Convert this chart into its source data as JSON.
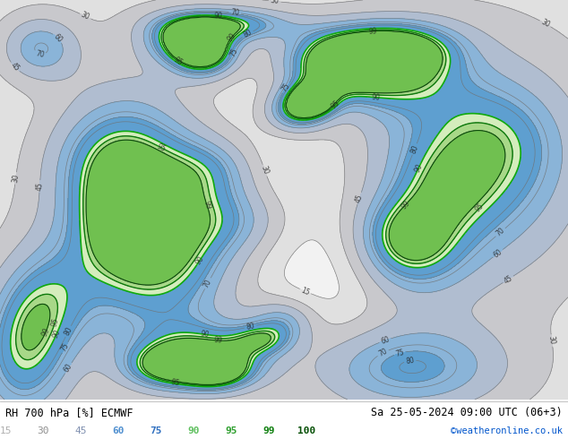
{
  "title_left": "RH 700 hPa [%] ECMWF",
  "title_right": "Sa 25-05-2024 09:00 UTC (06+3)",
  "credit": "©weatheronline.co.uk",
  "colorbar_values": [
    15,
    30,
    45,
    60,
    75,
    90,
    95,
    99,
    100
  ],
  "text_colors": [
    "#b0b0b0",
    "#909090",
    "#8090b0",
    "#5090d0",
    "#3070c0",
    "#60c060",
    "#30a030",
    "#108010",
    "#065006"
  ],
  "fill_levels": [
    10,
    15,
    30,
    45,
    60,
    75,
    90,
    95,
    99,
    101
  ],
  "fill_colors": [
    "#f2f2f2",
    "#e0e0e0",
    "#c8c8cc",
    "#b0bdd0",
    "#8ab4d8",
    "#5e9fd0",
    "#d4edbc",
    "#a8d888",
    "#70c050"
  ],
  "contour_levels": [
    15,
    30,
    45,
    60,
    70,
    75,
    80,
    90,
    95,
    99
  ],
  "green_contour_levels": [
    90,
    95,
    99
  ],
  "bg_color": "#ffffff",
  "fig_width": 6.34,
  "fig_height": 4.9,
  "dpi": 100
}
